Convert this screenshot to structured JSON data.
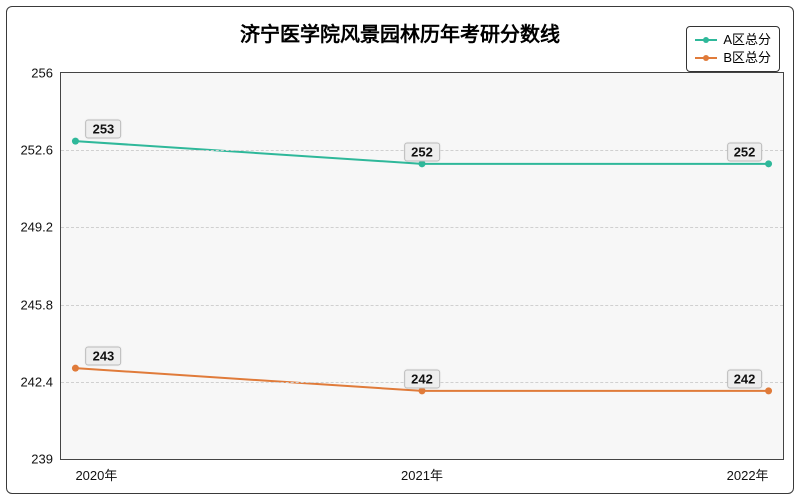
{
  "chart": {
    "type": "line",
    "title": "济宁医学院风景园林历年考研分数线",
    "title_fontsize": 20,
    "background_color": "#ffffff",
    "plot_background_color": "#f7f7f7",
    "border_color": "#3a3a3a",
    "grid_color": "#d0d0d0",
    "label_bg": "#eeeeee",
    "label_fontsize": 13,
    "x": {
      "categories": [
        "2020年",
        "2021年",
        "2022年"
      ],
      "positions_pct": [
        2,
        50,
        98
      ]
    },
    "y": {
      "min": 239,
      "max": 256,
      "ticks": [
        239,
        242.4,
        245.8,
        249.2,
        252.6,
        256
      ]
    },
    "legend": {
      "items": [
        {
          "label": "A区总分",
          "color": "#2fb89a"
        },
        {
          "label": "B区总分",
          "color": "#e07b3a"
        }
      ]
    },
    "series": [
      {
        "name": "A区总分",
        "color": "#2fb89a",
        "marker": "circle",
        "line_width": 2,
        "values": [
          253,
          252,
          252
        ],
        "label_offsets": [
          {
            "dx": 28,
            "dy": 0
          },
          {
            "dx": 0,
            "dy": 0
          },
          {
            "dx": -24,
            "dy": 0
          }
        ]
      },
      {
        "name": "B区总分",
        "color": "#e07b3a",
        "marker": "circle",
        "line_width": 2,
        "values": [
          243,
          242,
          242
        ],
        "label_offsets": [
          {
            "dx": 28,
            "dy": 0
          },
          {
            "dx": 0,
            "dy": 0
          },
          {
            "dx": -24,
            "dy": 0
          }
        ]
      }
    ]
  }
}
